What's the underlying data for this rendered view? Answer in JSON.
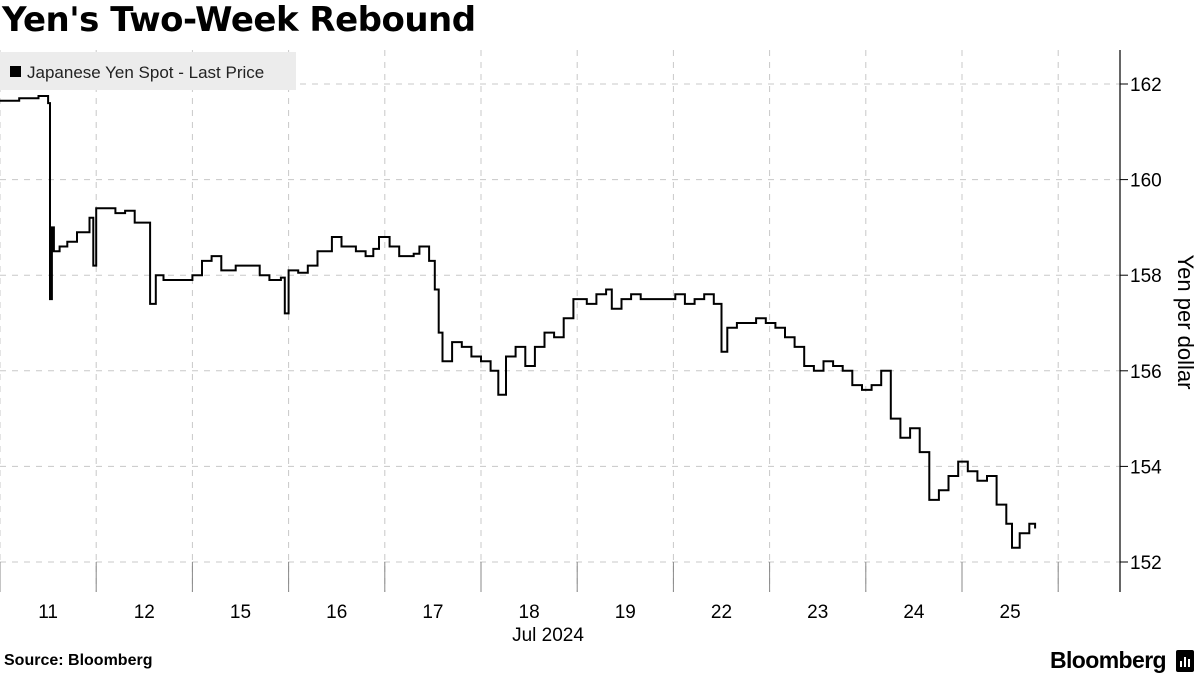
{
  "title": "Yen's Two-Week Rebound",
  "source": "Source: Bloomberg",
  "brand": "Bloomberg",
  "chart_data": {
    "type": "line",
    "legend": {
      "label": "Japanese Yen Spot - Last Price",
      "position": "top-left"
    },
    "ylabel": "Yen per dollar",
    "ylim": [
      151.5,
      162.7
    ],
    "yticks": [
      152,
      154,
      156,
      158,
      160,
      162
    ],
    "y_axis_side": "right",
    "grid": "dashed",
    "x_tick_labels": [
      "11",
      "12",
      "15",
      "16",
      "17",
      "18",
      "19",
      "22",
      "23",
      "24",
      "25"
    ],
    "x_period_label": "Jul 2024",
    "series": [
      {
        "name": "Japanese Yen Spot - Last Price",
        "points": [
          [
            0.0,
            161.65
          ],
          [
            0.2,
            161.7
          ],
          [
            0.4,
            161.75
          ],
          [
            0.5,
            161.6
          ],
          [
            0.52,
            157.5
          ],
          [
            0.54,
            159.0
          ],
          [
            0.56,
            158.5
          ],
          [
            0.62,
            158.6
          ],
          [
            0.7,
            158.7
          ],
          [
            0.8,
            158.9
          ],
          [
            0.88,
            158.9
          ],
          [
            0.93,
            159.2
          ],
          [
            0.97,
            158.2
          ],
          [
            1.0,
            159.4
          ],
          [
            1.1,
            159.4
          ],
          [
            1.2,
            159.3
          ],
          [
            1.3,
            159.35
          ],
          [
            1.4,
            159.1
          ],
          [
            1.52,
            159.1
          ],
          [
            1.56,
            157.4
          ],
          [
            1.62,
            158.0
          ],
          [
            1.7,
            157.9
          ],
          [
            1.9,
            157.9
          ],
          [
            2.0,
            158.0
          ],
          [
            2.1,
            158.3
          ],
          [
            2.2,
            158.4
          ],
          [
            2.3,
            158.1
          ],
          [
            2.45,
            158.2
          ],
          [
            2.6,
            158.2
          ],
          [
            2.7,
            158.0
          ],
          [
            2.8,
            157.9
          ],
          [
            2.92,
            157.95
          ],
          [
            2.96,
            157.2
          ],
          [
            3.0,
            158.1
          ],
          [
            3.1,
            158.05
          ],
          [
            3.2,
            158.2
          ],
          [
            3.3,
            158.5
          ],
          [
            3.45,
            158.8
          ],
          [
            3.55,
            158.6
          ],
          [
            3.7,
            158.5
          ],
          [
            3.8,
            158.4
          ],
          [
            3.88,
            158.55
          ],
          [
            3.94,
            158.8
          ],
          [
            4.05,
            158.6
          ],
          [
            4.15,
            158.4
          ],
          [
            4.3,
            158.45
          ],
          [
            4.36,
            158.6
          ],
          [
            4.46,
            158.3
          ],
          [
            4.52,
            157.7
          ],
          [
            4.56,
            156.8
          ],
          [
            4.6,
            156.2
          ],
          [
            4.7,
            156.6
          ],
          [
            4.8,
            156.5
          ],
          [
            4.9,
            156.3
          ],
          [
            5.0,
            156.2
          ],
          [
            5.1,
            156.0
          ],
          [
            5.18,
            155.5
          ],
          [
            5.26,
            156.3
          ],
          [
            5.36,
            156.5
          ],
          [
            5.46,
            156.1
          ],
          [
            5.56,
            156.5
          ],
          [
            5.66,
            156.8
          ],
          [
            5.76,
            156.7
          ],
          [
            5.86,
            157.1
          ],
          [
            5.96,
            157.5
          ],
          [
            6.1,
            157.4
          ],
          [
            6.2,
            157.6
          ],
          [
            6.3,
            157.7
          ],
          [
            6.36,
            157.3
          ],
          [
            6.46,
            157.5
          ],
          [
            6.56,
            157.6
          ],
          [
            6.66,
            157.5
          ],
          [
            6.76,
            157.5
          ],
          [
            6.82,
            157.5
          ],
          [
            7.02,
            157.6
          ],
          [
            7.12,
            157.4
          ],
          [
            7.22,
            157.5
          ],
          [
            7.32,
            157.6
          ],
          [
            7.42,
            157.4
          ],
          [
            7.5,
            156.4
          ],
          [
            7.56,
            156.9
          ],
          [
            7.66,
            157.0
          ],
          [
            7.76,
            157.0
          ],
          [
            7.86,
            157.1
          ],
          [
            7.96,
            157.0
          ],
          [
            8.06,
            156.9
          ],
          [
            8.16,
            156.7
          ],
          [
            8.26,
            156.5
          ],
          [
            8.36,
            156.1
          ],
          [
            8.46,
            156.0
          ],
          [
            8.56,
            156.2
          ],
          [
            8.66,
            156.1
          ],
          [
            8.76,
            156.0
          ],
          [
            8.86,
            155.7
          ],
          [
            8.96,
            155.6
          ],
          [
            9.06,
            155.7
          ],
          [
            9.16,
            156.0
          ],
          [
            9.26,
            155.0
          ],
          [
            9.36,
            154.6
          ],
          [
            9.46,
            154.8
          ],
          [
            9.56,
            154.3
          ],
          [
            9.66,
            153.3
          ],
          [
            9.76,
            153.5
          ],
          [
            9.86,
            153.8
          ],
          [
            9.96,
            154.1
          ],
          [
            10.06,
            153.9
          ],
          [
            10.16,
            153.7
          ],
          [
            10.26,
            153.8
          ],
          [
            10.36,
            153.2
          ],
          [
            10.46,
            152.8
          ],
          [
            10.52,
            152.3
          ],
          [
            10.6,
            152.6
          ],
          [
            10.7,
            152.8
          ],
          [
            10.76,
            152.7
          ]
        ]
      }
    ]
  }
}
